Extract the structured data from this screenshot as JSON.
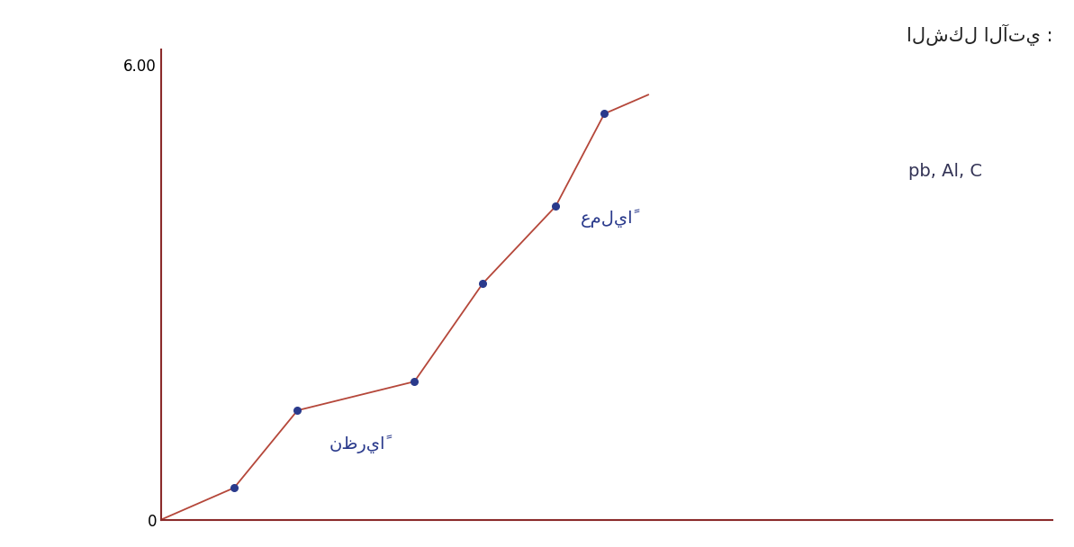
{
  "chart_data": {
    "type": "line",
    "title": "الشكل الآتي :",
    "annotations": [
      "نظرياً",
      "عملياً",
      "pb, Al, C"
    ],
    "x": [
      0,
      1.5,
      2.8,
      5.2,
      6.6,
      8.1,
      9.1,
      10
    ],
    "series": [
      {
        "type": "line",
        "color": "#b5473a",
        "marker": "none",
        "line_style": "solid",
        "values": [
          0,
          0.42,
          1.44,
          1.82,
          3.11,
          4.13,
          5.35,
          5.6
        ]
      },
      {
        "type": "scatter",
        "color": "#2a3a8c",
        "marker": "o",
        "values": [
          null,
          0.42,
          1.44,
          1.82,
          3.11,
          4.13,
          5.35,
          null
        ]
      }
    ],
    "xlim": [
      0,
      18.3
    ],
    "ylim": [
      0,
      6.2
    ],
    "yticks": [
      0,
      {
        "value": 6,
        "label": "6.00"
      }
    ],
    "tick_labels": "y",
    "grid": false
  }
}
